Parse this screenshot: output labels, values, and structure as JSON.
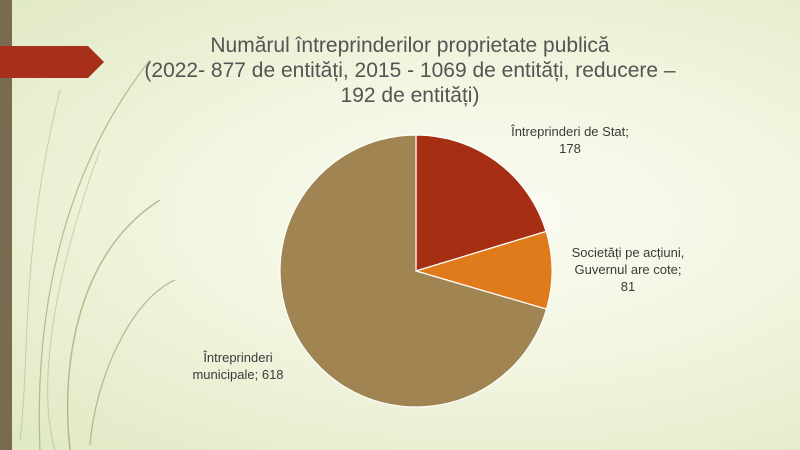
{
  "slide": {
    "title_lines": [
      "Numărul întreprinderilor proprietate publică",
      "(2022- 877 de entități, 2015 - 1069 de entități, reducere –",
      "192 de entități)"
    ]
  },
  "colors": {
    "accent_bar": "#7a6a4f",
    "ribbon": "#a8301a",
    "slice_stat": "#a62f13",
    "slice_societati": "#e07b1c",
    "slice_municipale": "#a08452"
  },
  "chart_data": {
    "type": "pie",
    "title": "Numărul întreprinderilor proprietate publică (2022- 877 de entități, 2015 - 1069 de entități, reducere – 192 de entități)",
    "slices": [
      {
        "label_lines": [
          "Întreprinderi de Stat;",
          "178"
        ],
        "value": 178
      },
      {
        "label_lines": [
          "Societăți pe acțiuni,",
          "Guvernul are cote;",
          "81"
        ],
        "value": 81
      },
      {
        "label_lines": [
          "Întreprinderi",
          "municipale; 618"
        ],
        "value": 618
      }
    ]
  }
}
